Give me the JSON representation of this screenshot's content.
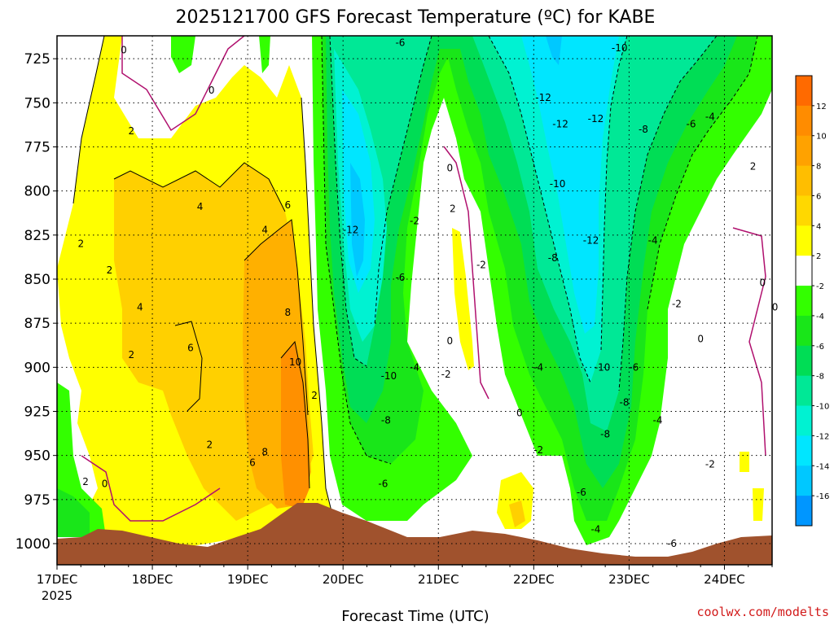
{
  "chart_data": {
    "type": "heatmap",
    "title": "2025121700 GFS Forecast Temperature (ºC) for KABE",
    "xlabel": "Forecast Time (UTC)",
    "ylabel": "",
    "x_ticks": [
      "17DEC",
      "18DEC",
      "19DEC",
      "20DEC",
      "21DEC",
      "22DEC",
      "23DEC",
      "24DEC"
    ],
    "x_start_year": "2025",
    "y_ticks": [
      725,
      750,
      775,
      800,
      825,
      850,
      875,
      900,
      925,
      950,
      975,
      1000
    ],
    "ylim": [
      1012,
      712
    ],
    "xlim": [
      0,
      7.5
    ],
    "colorbar_ticks": [
      12,
      10,
      8,
      6,
      4,
      2,
      -2,
      -4,
      -6,
      -8,
      -10,
      -12,
      -14,
      -16
    ],
    "colorbar_colors": [
      "#ff6a00",
      "#ff8c00",
      "#ffa200",
      "#ffbe00",
      "#ffd800",
      "#ffff00",
      "#ffffff",
      "#33ff00",
      "#19e619",
      "#00dd55",
      "#00e896",
      "#00f2d2",
      "#00e6ff",
      "#00c8ff",
      "#0096ff"
    ],
    "contour_labels": [
      {
        "text": "0",
        "t": 0.7,
        "p": 720
      },
      {
        "text": "0",
        "t": 1.62,
        "p": 743
      },
      {
        "text": "2",
        "t": 0.78,
        "p": 766
      },
      {
        "text": "2",
        "t": 0.25,
        "p": 830
      },
      {
        "text": "2",
        "t": 0.55,
        "p": 845
      },
      {
        "text": "4",
        "t": 0.87,
        "p": 866
      },
      {
        "text": "2",
        "t": 0.78,
        "p": 893
      },
      {
        "text": "6",
        "t": 1.4,
        "p": 889
      },
      {
        "text": "4",
        "t": 1.5,
        "p": 809
      },
      {
        "text": "4",
        "t": 2.18,
        "p": 822
      },
      {
        "text": "6",
        "t": 2.42,
        "p": 808
      },
      {
        "text": "8",
        "t": 2.42,
        "p": 869
      },
      {
        "text": "10",
        "t": 2.5,
        "p": 897
      },
      {
        "text": "2",
        "t": 2.7,
        "p": 916
      },
      {
        "text": "2",
        "t": 1.6,
        "p": 944
      },
      {
        "text": "6",
        "t": 2.05,
        "p": 954
      },
      {
        "text": "8",
        "t": 2.18,
        "p": 948
      },
      {
        "text": "2",
        "t": 0.3,
        "p": 965
      },
      {
        "text": "0",
        "t": 0.5,
        "p": 966
      },
      {
        "text": "-6",
        "t": 3.6,
        "p": 716
      },
      {
        "text": "-12",
        "t": 3.08,
        "p": 822
      },
      {
        "text": "-2",
        "t": 3.75,
        "p": 817
      },
      {
        "text": "-6",
        "t": 3.6,
        "p": 849
      },
      {
        "text": "-10",
        "t": 3.48,
        "p": 905
      },
      {
        "text": "-4",
        "t": 3.75,
        "p": 900
      },
      {
        "text": "-8",
        "t": 3.45,
        "p": 930
      },
      {
        "text": "-6",
        "t": 3.42,
        "p": 966
      },
      {
        "text": "0",
        "t": 4.12,
        "p": 787
      },
      {
        "text": "2",
        "t": 4.15,
        "p": 810
      },
      {
        "text": "-2",
        "t": 4.45,
        "p": 842
      },
      {
        "text": "0",
        "t": 4.12,
        "p": 885
      },
      {
        "text": "-2",
        "t": 4.08,
        "p": 904
      },
      {
        "text": "-12",
        "t": 5.1,
        "p": 747
      },
      {
        "text": "-12",
        "t": 5.28,
        "p": 762
      },
      {
        "text": "-12",
        "t": 5.65,
        "p": 759
      },
      {
        "text": "-10",
        "t": 5.9,
        "p": 719
      },
      {
        "text": "-10",
        "t": 5.25,
        "p": 796
      },
      {
        "text": "-8",
        "t": 6.15,
        "p": 765
      },
      {
        "text": "-6",
        "t": 6.65,
        "p": 762
      },
      {
        "text": "-4",
        "t": 6.85,
        "p": 758
      },
      {
        "text": "2",
        "t": 7.3,
        "p": 786
      },
      {
        "text": "-12",
        "t": 5.6,
        "p": 828
      },
      {
        "text": "-8",
        "t": 5.2,
        "p": 838
      },
      {
        "text": "-4",
        "t": 6.25,
        "p": 828
      },
      {
        "text": "-2",
        "t": 6.5,
        "p": 864
      },
      {
        "text": "0",
        "t": 6.75,
        "p": 884
      },
      {
        "text": "0",
        "t": 7.4,
        "p": 852
      },
      {
        "text": "0",
        "t": 7.53,
        "p": 866
      },
      {
        "text": "-4",
        "t": 5.05,
        "p": 900
      },
      {
        "text": "0",
        "t": 4.85,
        "p": 926
      },
      {
        "text": "-10",
        "t": 5.72,
        "p": 900
      },
      {
        "text": "-6",
        "t": 6.05,
        "p": 900
      },
      {
        "text": "-8",
        "t": 5.95,
        "p": 920
      },
      {
        "text": "-8",
        "t": 5.75,
        "p": 938
      },
      {
        "text": "-4",
        "t": 6.3,
        "p": 930
      },
      {
        "text": "-2",
        "t": 5.05,
        "p": 947
      },
      {
        "text": "-6",
        "t": 5.5,
        "p": 971
      },
      {
        "text": "-4",
        "t": 5.65,
        "p": 992
      },
      {
        "text": "-6",
        "t": 6.45,
        "p": 1000
      },
      {
        "text": "-2",
        "t": 6.85,
        "p": 955
      }
    ]
  },
  "credit": "coolwx.com/modelts"
}
